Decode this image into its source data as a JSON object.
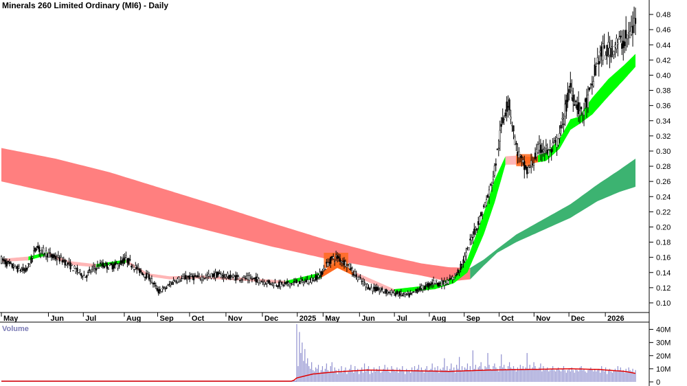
{
  "chart_data": {
    "type": "candlestick",
    "title": "Minerals 260 Limited Ordinary (MI6) - Daily",
    "volume_label": "Volume",
    "price_axis": {
      "ylim": [
        0.09,
        0.49
      ],
      "ticks": [
        "0.10",
        "0.12",
        "0.14",
        "0.16",
        "0.18",
        "0.20",
        "0.22",
        "0.24",
        "0.26",
        "0.28",
        "0.30",
        "0.32",
        "0.34",
        "0.36",
        "0.38",
        "0.40",
        "0.42",
        "0.44",
        "0.46",
        "0.48"
      ]
    },
    "volume_axis": {
      "ylim": [
        0,
        45
      ],
      "unit": "M",
      "ticks": [
        "0",
        "10M",
        "20M",
        "30M",
        "40M"
      ]
    },
    "x_months": [
      "May",
      "Jun",
      "Jul",
      "Aug",
      "Sep",
      "Oct",
      "Nov",
      "Dec",
      "2025",
      "May",
      "Jun",
      "Jul",
      "Aug",
      "Sep",
      "Oct",
      "Nov",
      "Dec",
      "2026"
    ],
    "colors": {
      "long_band_down": "#ff7f7f",
      "long_band_up": "#3cb371",
      "short_band_up": "#00ff00",
      "short_band_down": "#ff6a1f",
      "short_band_weak": "#ffb6b6",
      "candles": "#000000",
      "volume_bars": "#8f8fcf",
      "volume_avg": "#e00000"
    },
    "series": [
      {
        "name": "Price",
        "points": [
          [
            0,
            0.157
          ],
          [
            6,
            0.15
          ],
          [
            12,
            0.145
          ],
          [
            18,
            0.142
          ],
          [
            22,
            0.155
          ],
          [
            26,
            0.175
          ],
          [
            28,
            0.17
          ],
          [
            33,
            0.166
          ],
          [
            38,
            0.16
          ],
          [
            44,
            0.158
          ],
          [
            50,
            0.15
          ],
          [
            56,
            0.142
          ],
          [
            62,
            0.135
          ],
          [
            68,
            0.145
          ],
          [
            74,
            0.15
          ],
          [
            80,
            0.148
          ],
          [
            86,
            0.15
          ],
          [
            92,
            0.158
          ],
          [
            98,
            0.148
          ],
          [
            104,
            0.14
          ],
          [
            110,
            0.132
          ],
          [
            116,
            0.115
          ],
          [
            122,
            0.12
          ],
          [
            128,
            0.13
          ],
          [
            134,
            0.132
          ],
          [
            140,
            0.134
          ],
          [
            146,
            0.133
          ],
          [
            152,
            0.135
          ],
          [
            158,
            0.137
          ],
          [
            164,
            0.136
          ],
          [
            170,
            0.134
          ],
          [
            176,
            0.133
          ],
          [
            182,
            0.132
          ],
          [
            188,
            0.131
          ],
          [
            194,
            0.128
          ],
          [
            200,
            0.126
          ],
          [
            206,
            0.124
          ],
          [
            212,
            0.125
          ],
          [
            218,
            0.127
          ],
          [
            224,
            0.128
          ],
          [
            230,
            0.131
          ],
          [
            236,
            0.138
          ],
          [
            240,
            0.15
          ],
          [
            244,
            0.158
          ],
          [
            248,
            0.16
          ],
          [
            252,
            0.155
          ],
          [
            256,
            0.15
          ],
          [
            260,
            0.14
          ],
          [
            266,
            0.128
          ],
          [
            272,
            0.12
          ],
          [
            278,
            0.117
          ],
          [
            284,
            0.115
          ],
          [
            290,
            0.113
          ],
          [
            296,
            0.111
          ],
          [
            302,
            0.11
          ],
          [
            308,
            0.118
          ],
          [
            314,
            0.122
          ],
          [
            320,
            0.128
          ],
          [
            324,
            0.125
          ],
          [
            328,
            0.127
          ],
          [
            332,
            0.13
          ],
          [
            336,
            0.138
          ],
          [
            340,
            0.15
          ],
          [
            344,
            0.168
          ],
          [
            348,
            0.19
          ],
          [
            352,
            0.205
          ],
          [
            356,
            0.225
          ],
          [
            360,
            0.245
          ],
          [
            364,
            0.275
          ],
          [
            368,
            0.32
          ],
          [
            372,
            0.355
          ],
          [
            374,
            0.365
          ],
          [
            376,
            0.35
          ],
          [
            380,
            0.305
          ],
          [
            384,
            0.285
          ],
          [
            388,
            0.272
          ],
          [
            392,
            0.285
          ],
          [
            396,
            0.3
          ],
          [
            400,
            0.305
          ],
          [
            404,
            0.298
          ],
          [
            408,
            0.305
          ],
          [
            412,
            0.318
          ],
          [
            416,
            0.352
          ],
          [
            420,
            0.385
          ],
          [
            424,
            0.365
          ],
          [
            428,
            0.348
          ],
          [
            432,
            0.362
          ],
          [
            436,
            0.385
          ],
          [
            440,
            0.42
          ],
          [
            444,
            0.43
          ],
          [
            448,
            0.432
          ],
          [
            452,
            0.44
          ],
          [
            456,
            0.442
          ],
          [
            460,
            0.445
          ],
          [
            464,
            0.455
          ],
          [
            468,
            0.47
          ]
        ]
      },
      {
        "name": "Short-term band",
        "points": [
          [
            0,
            0.158,
            0.154
          ],
          [
            20,
            0.161,
            0.156
          ],
          [
            34,
            0.167,
            0.163
          ],
          [
            50,
            0.155,
            0.15
          ],
          [
            70,
            0.151,
            0.147
          ],
          [
            92,
            0.157,
            0.153
          ],
          [
            108,
            0.139,
            0.135
          ],
          [
            124,
            0.135,
            0.131
          ],
          [
            150,
            0.136,
            0.132
          ],
          [
            180,
            0.133,
            0.129
          ],
          [
            210,
            0.129,
            0.125
          ],
          [
            236,
            0.14,
            0.133
          ],
          [
            248,
            0.155,
            0.146
          ],
          [
            262,
            0.14,
            0.134
          ],
          [
            290,
            0.118,
            0.113
          ],
          [
            320,
            0.124,
            0.118
          ],
          [
            334,
            0.134,
            0.126
          ],
          [
            344,
            0.158,
            0.14
          ],
          [
            356,
            0.218,
            0.19
          ],
          [
            364,
            0.262,
            0.232
          ],
          [
            372,
            0.293,
            0.282
          ],
          [
            380,
            0.294,
            0.282
          ],
          [
            392,
            0.292,
            0.284
          ],
          [
            402,
            0.298,
            0.287
          ],
          [
            412,
            0.316,
            0.303
          ],
          [
            420,
            0.342,
            0.328
          ],
          [
            426,
            0.345,
            0.335
          ],
          [
            436,
            0.37,
            0.348
          ],
          [
            448,
            0.395,
            0.372
          ],
          [
            460,
            0.414,
            0.395
          ],
          [
            468,
            0.428,
            0.411
          ]
        ]
      },
      {
        "name": "Long-term band",
        "points": [
          [
            0,
            0.304,
            0.26
          ],
          [
            40,
            0.29,
            0.244
          ],
          [
            80,
            0.272,
            0.228
          ],
          [
            120,
            0.25,
            0.21
          ],
          [
            160,
            0.228,
            0.192
          ],
          [
            200,
            0.205,
            0.174
          ],
          [
            240,
            0.183,
            0.158
          ],
          [
            280,
            0.164,
            0.145
          ],
          [
            310,
            0.152,
            0.136
          ],
          [
            330,
            0.147,
            0.128
          ],
          [
            346,
            0.146,
            0.131
          ],
          [
            356,
            0.157,
            0.149
          ],
          [
            366,
            0.171,
            0.166
          ],
          [
            380,
            0.19,
            0.18
          ],
          [
            400,
            0.21,
            0.196
          ],
          [
            420,
            0.23,
            0.212
          ],
          [
            440,
            0.256,
            0.234
          ],
          [
            456,
            0.275,
            0.246
          ],
          [
            468,
            0.29,
            0.253
          ]
        ]
      },
      {
        "name": "Volume",
        "unit": "M",
        "start_index": 218,
        "values": [
          44,
          12,
          38,
          22,
          30,
          16,
          25,
          14,
          18,
          12,
          10,
          15,
          9,
          8,
          11,
          10,
          13,
          7,
          9,
          12,
          8,
          10,
          14,
          9,
          7,
          12,
          15,
          8,
          11,
          9,
          6,
          10,
          8,
          12,
          7,
          9,
          11,
          6,
          8,
          10,
          13,
          9,
          7,
          12,
          8,
          10,
          6,
          9,
          11,
          7,
          14,
          8,
          10,
          12,
          6,
          9,
          7,
          11,
          8,
          10,
          9,
          12,
          7,
          8,
          10,
          13,
          9,
          11,
          8,
          7,
          12,
          10,
          9,
          8,
          11,
          7,
          10,
          9,
          12,
          8,
          6,
          10,
          8,
          9,
          7,
          11,
          8,
          12,
          9,
          10,
          13,
          8,
          11,
          9,
          7,
          10,
          12,
          8,
          9,
          10,
          14,
          8,
          11,
          9,
          12,
          7,
          10,
          9,
          11,
          18,
          9,
          12,
          8,
          10,
          14,
          9,
          11,
          7,
          13,
          10,
          19,
          9,
          12,
          8,
          11,
          10,
          14,
          9,
          12,
          8,
          24,
          10,
          13,
          9,
          11,
          12,
          15,
          10,
          9,
          12,
          11,
          22,
          13,
          10,
          9,
          12,
          14,
          11,
          10,
          8,
          12,
          21,
          11,
          13,
          10,
          9,
          12,
          15,
          11,
          10,
          12,
          10,
          8,
          11,
          9,
          13,
          10,
          12,
          9,
          11,
          22,
          10,
          13,
          9,
          11,
          15,
          12,
          10,
          9,
          11,
          14,
          8,
          12,
          9,
          10,
          11,
          8,
          9,
          10,
          12,
          9,
          8,
          10,
          11,
          9,
          8,
          10,
          12,
          9,
          7,
          9,
          10,
          8,
          11,
          9,
          7,
          10,
          9,
          8,
          11,
          12,
          9,
          10,
          8,
          7,
          9,
          10,
          11,
          9,
          8,
          10,
          8,
          9,
          10,
          7,
          12,
          9,
          8,
          11,
          6,
          9,
          10,
          8,
          7,
          9,
          10,
          8,
          12,
          9,
          11,
          8,
          9,
          7,
          10,
          8,
          11,
          9,
          8,
          10,
          7,
          9
        ]
      },
      {
        "name": "Volume average",
        "unit": "M",
        "points": [
          [
            0,
            0.5
          ],
          [
            215,
            0.5
          ],
          [
            218,
            3
          ],
          [
            230,
            6
          ],
          [
            245,
            7.5
          ],
          [
            270,
            9
          ],
          [
            300,
            8.5
          ],
          [
            330,
            8
          ],
          [
            360,
            9
          ],
          [
            390,
            9.5
          ],
          [
            420,
            10
          ],
          [
            440,
            9.5
          ],
          [
            460,
            8
          ],
          [
            468,
            6.5
          ]
        ]
      }
    ]
  }
}
